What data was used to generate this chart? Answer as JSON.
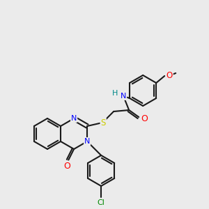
{
  "background_color": "#ebebeb",
  "bond_color": "#1a1a1a",
  "atom_colors": {
    "N": "#0000ff",
    "O": "#ff0000",
    "S": "#cccc00",
    "Cl": "#008800",
    "H": "#008888",
    "C": "#1a1a1a"
  }
}
